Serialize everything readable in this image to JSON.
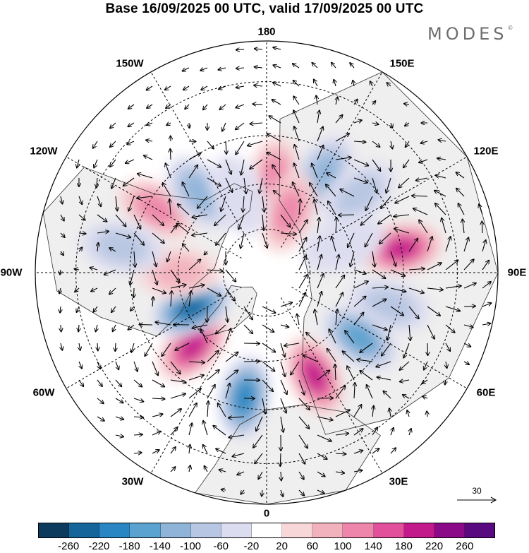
{
  "header": {
    "title": "Base 16/09/2025 00 UTC, valid 17/09/2025 00 UTC",
    "logo_text": "MODES",
    "logo_mark": "©"
  },
  "map": {
    "projection": "north-polar-stereographic",
    "center_lat": 90,
    "lon_labels": [
      {
        "id": "180",
        "text": "180",
        "lon": 180
      },
      {
        "id": "150e",
        "text": "150E",
        "lon": 150
      },
      {
        "id": "120e",
        "text": "120E",
        "lon": 120
      },
      {
        "id": "90e",
        "text": "90E",
        "lon": 90
      },
      {
        "id": "60e",
        "text": "60E",
        "lon": 60
      },
      {
        "id": "30e",
        "text": "30E",
        "lon": 30
      },
      {
        "id": "0",
        "text": "0",
        "lon": 0
      },
      {
        "id": "30w",
        "text": "30W",
        "lon": -30
      },
      {
        "id": "60w",
        "text": "60W",
        "lon": -60
      },
      {
        "id": "90w",
        "text": "90W",
        "lon": -90
      },
      {
        "id": "120w",
        "text": "120W",
        "lon": -120
      },
      {
        "id": "150w",
        "text": "150W",
        "lon": -150
      }
    ],
    "graticule_lats": [
      30,
      45,
      60,
      75
    ],
    "anomaly_centers": [
      {
        "lon": 175,
        "lat": 58,
        "value": 140,
        "sign": "positive"
      },
      {
        "lon": 150,
        "lat": 52,
        "value": -120,
        "sign": "negative"
      },
      {
        "lon": 130,
        "lat": 50,
        "value": -100,
        "sign": "negative"
      },
      {
        "lon": 160,
        "lat": 68,
        "value": 120,
        "sign": "positive"
      },
      {
        "lon": 100,
        "lat": 45,
        "value": 200,
        "sign": "positive"
      },
      {
        "lon": 75,
        "lat": 48,
        "value": -100,
        "sign": "negative"
      },
      {
        "lon": 55,
        "lat": 52,
        "value": -160,
        "sign": "negative"
      },
      {
        "lon": 25,
        "lat": 52,
        "value": 200,
        "sign": "positive"
      },
      {
        "lon": -10,
        "lat": 48,
        "value": -220,
        "sign": "negative"
      },
      {
        "lon": -45,
        "lat": 55,
        "value": 200,
        "sign": "positive"
      },
      {
        "lon": -65,
        "lat": 62,
        "value": -240,
        "sign": "negative"
      },
      {
        "lon": -90,
        "lat": 60,
        "value": 100,
        "sign": "positive"
      },
      {
        "lon": -120,
        "lat": 48,
        "value": 120,
        "sign": "positive"
      },
      {
        "lon": -140,
        "lat": 55,
        "value": -140,
        "sign": "negative"
      },
      {
        "lon": -160,
        "lat": 62,
        "value": -60,
        "sign": "negative"
      },
      {
        "lon": -100,
        "lat": 42,
        "value": -80,
        "sign": "negative"
      },
      {
        "lon": 110,
        "lat": 62,
        "value": -60,
        "sign": "negative"
      }
    ],
    "wind_reference": {
      "value": "30",
      "unit_label": "30"
    }
  },
  "colorbar": {
    "colors": [
      "#0d3b5e",
      "#15649a",
      "#2a86c2",
      "#5aa2cf",
      "#8fb4d8",
      "#b7c6e2",
      "#dcdcf0",
      "#ffffff",
      "#f8d7d8",
      "#f2b2bd",
      "#ed86aa",
      "#e2509c",
      "#c21a8a",
      "#8b0a87",
      "#5a0a80"
    ],
    "labels": [
      "-260",
      "-220",
      "-180",
      "-140",
      "-100",
      "-60",
      "-20",
      "20",
      "60",
      "100",
      "140",
      "180",
      "220",
      "260"
    ]
  }
}
